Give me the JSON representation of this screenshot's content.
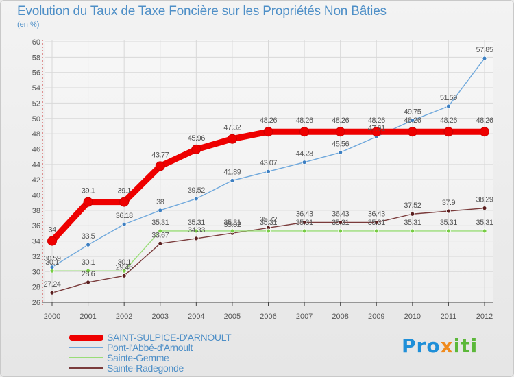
{
  "title": "Evolution du Taux de Taxe Foncière sur les Propriétés Non Bâties",
  "unit_label": "(en %)",
  "logo_text": "Proxiti",
  "chart_data": {
    "type": "line",
    "title": "Evolution du Taux de Taxe Foncière sur les Propriétés Non Bâties",
    "ylabel": "(en %)",
    "xlabel": "",
    "ylim": [
      26,
      60
    ],
    "yticks": [
      26,
      28,
      30,
      32,
      34,
      36,
      38,
      40,
      42,
      44,
      46,
      48,
      50,
      52,
      54,
      56,
      58,
      60
    ],
    "categories": [
      "2000",
      "2001",
      "2002",
      "2003",
      "2004",
      "2005",
      "2006",
      "2007",
      "2008",
      "2009",
      "2010",
      "2011",
      "2012"
    ],
    "grid": true,
    "legend_position": "bottom-left",
    "series": [
      {
        "name": "SAINT-SULPICE-D'ARNOULT",
        "color": "#ee0000",
        "emphasis": true,
        "values": [
          34,
          39.1,
          39.1,
          43.77,
          45.96,
          47.32,
          48.26,
          48.26,
          48.26,
          48.26,
          48.26,
          48.26,
          48.26
        ],
        "labels": [
          "34",
          "39.1",
          "39.1",
          "43.77",
          "45.96",
          "47.32",
          "48.26",
          "48.26",
          "48.26",
          "48.26",
          "48.26",
          "48.26",
          "48.26"
        ]
      },
      {
        "name": "Pont-l'Abbé-d'Arnoult",
        "color": "#6fa8dc",
        "marker_color": "#3d7fc1",
        "values": [
          30.59,
          33.5,
          36.18,
          38,
          39.52,
          41.89,
          43.07,
          44.28,
          45.56,
          47.61,
          49.75,
          51.59,
          57.85
        ],
        "labels": [
          "30.59",
          "33.5",
          "36.18",
          "38",
          "39.52",
          "41.89",
          "43.07",
          "44.28",
          "45.56",
          "47.61",
          "49.75",
          "51.59",
          "57.85"
        ]
      },
      {
        "name": "Sainte-Gemme",
        "color": "#99dd77",
        "marker_color": "#77cc44",
        "values": [
          30.1,
          30.1,
          30.1,
          35.31,
          35.31,
          35.31,
          35.31,
          35.31,
          35.31,
          35.31,
          35.31,
          35.31,
          35.31
        ],
        "labels": [
          "30.1",
          "30.1",
          "30.1",
          "35.31",
          "35.31",
          "35.31",
          "35.31",
          "35.31",
          "35.31",
          "35.31",
          "35.31",
          "35.31",
          "35.31"
        ]
      },
      {
        "name": "Sainte-Radegonde",
        "color": "#7a3b3b",
        "marker_color": "#5a1f1f",
        "values": [
          27.24,
          28.6,
          29.46,
          33.67,
          34.33,
          35.02,
          35.72,
          36.43,
          36.43,
          36.43,
          37.52,
          37.9,
          38.29
        ],
        "labels": [
          "27.24",
          "28.6",
          "29.46",
          "33.67",
          "34.33",
          "35.02",
          "35.72",
          "36.43",
          "36.43",
          "36.43",
          "37.52",
          "37.9",
          "38.29"
        ]
      }
    ]
  }
}
